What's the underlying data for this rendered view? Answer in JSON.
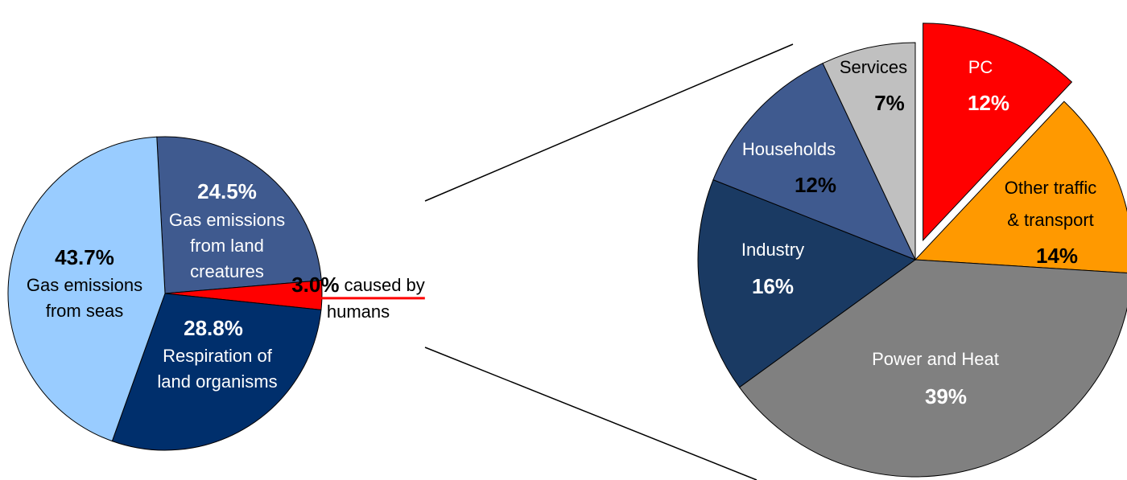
{
  "chart_data": [
    {
      "type": "pie",
      "categories": [
        "Gas emissions from land creatures",
        "caused by humans",
        "Respiration of land organisms",
        "Gas emissions from seas"
      ],
      "values": [
        24.5,
        3.0,
        28.8,
        43.7
      ],
      "value_labels": [
        "24.5%",
        "3.0%",
        "28.8%",
        "43.7%"
      ],
      "colors": [
        "#3f5a8f",
        "#ff0000",
        "#002f6c",
        "#99ccff"
      ]
    },
    {
      "type": "pie",
      "categories": [
        "PC",
        "Other traffic & transport",
        "Power and Heat",
        "Industry",
        "Households",
        "Services"
      ],
      "values": [
        12,
        14,
        39,
        16,
        12,
        7
      ],
      "value_labels": [
        "12%",
        "14%",
        "39%",
        "16%",
        "12%",
        "7%"
      ],
      "colors": [
        "#ff0000",
        "#ff9900",
        "#808080",
        "#1a3a63",
        "#3f5a8f",
        "#c0c0c0"
      ],
      "explode": [
        true,
        false,
        false,
        false,
        false,
        false
      ]
    }
  ]
}
